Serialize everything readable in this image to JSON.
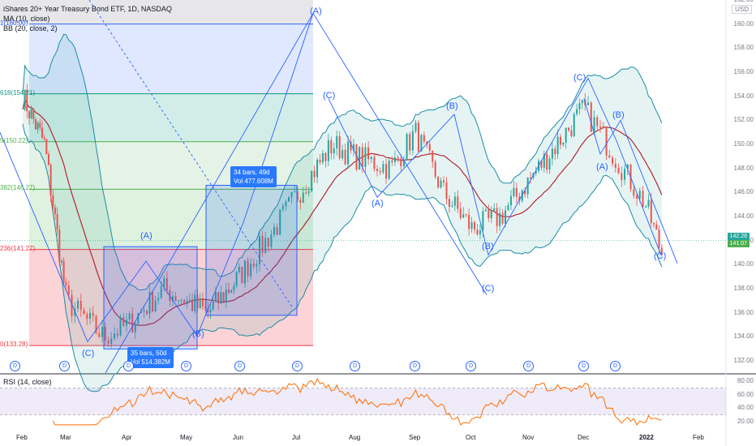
{
  "header": {
    "symbol_line": "iShares 20+ Year Treasury Bond ETF, 1D, NASDAQ",
    "ma_label": "MA (10, close)",
    "bb_label": "BB (20, close, 2)",
    "rsi_label": "RSI (14, close)",
    "currency": "USD"
  },
  "fib_levels": [
    {
      "label": "0(133.28)",
      "price": 133.28,
      "color": "#f23645"
    },
    {
      "label": "236(141.27)",
      "price": 141.27,
      "color": "#f23645"
    },
    {
      "label": "382(146.27)",
      "price": 146.27,
      "color": "#4caf50"
    },
    {
      "label": "5(150.22)",
      "price": 150.22,
      "color": "#4caf50"
    },
    {
      "label": "618(154.21)",
      "price": 154.21,
      "color": "#089981"
    },
    {
      "label": "1(160.00)",
      "price": 160.0,
      "color": "#2962ff"
    }
  ],
  "waves": [
    {
      "label": "(A)",
      "price": 141.5,
      "date": "Apr 10"
    },
    {
      "label": "(B)",
      "price": 133.5,
      "date": "May 5"
    },
    {
      "label": "(C)",
      "price": 132.5,
      "date": "Mar 10"
    },
    {
      "label": "(A)",
      "price": 161.0,
      "date": "Jul 8"
    },
    {
      "label": "(C)",
      "price": 154.0,
      "date": "Jul 15"
    },
    {
      "label": "(A)",
      "price": 145.5,
      "date": "Aug 10"
    },
    {
      "label": "(B)",
      "price": 153.5,
      "date": "Sep 20"
    },
    {
      "label": "(B)",
      "price": 140.5,
      "date": "Oct 10"
    },
    {
      "label": "(C)",
      "price": 137.5,
      "date": "Oct 10"
    },
    {
      "label": "(C)",
      "price": 156.0,
      "date": "Nov 25"
    },
    {
      "label": "(B)",
      "price": 152.5,
      "date": "Dec 18"
    },
    {
      "label": "(A)",
      "price": 148.5,
      "date": "Dec 12"
    },
    {
      "label": "(C)",
      "price": 140.2,
      "date": "Jan 15"
    }
  ],
  "callouts": [
    {
      "line1": "34 bars, 49d",
      "line2": "Vol 477.608M"
    },
    {
      "line1": "35 bars, 50d",
      "line2": "Vol 514.382M"
    }
  ],
  "price_axis": {
    "labels": [
      "162.00",
      "160.00",
      "158.00",
      "156.00",
      "154.00",
      "152.00",
      "150.00",
      "148.00",
      "146.00",
      "144.00",
      "142.00",
      "140.00",
      "138.00",
      "136.00",
      "134.00",
      "132.00"
    ],
    "current_tags": [
      "142.28",
      "141.07"
    ]
  },
  "rsi_axis": {
    "labels": [
      "80.00",
      "60.00",
      "40.00",
      "20.00"
    ]
  },
  "time_axis": [
    "Feb",
    "Mar",
    "Apr",
    "May",
    "Jun",
    "Jul",
    "Aug",
    "Sep",
    "Oct",
    "Nov",
    "Dec",
    "2022",
    "Feb"
  ],
  "dividend_marker": "D",
  "colors": {
    "candle_up": "#26a69a",
    "candle_down": "#ef5350",
    "ma": "#b22833",
    "bb": "#1e8ca5",
    "bb_fill": "rgba(38,166,154,0.12)",
    "wave_lines": "#2962ff",
    "rsi_line": "#ff6d00",
    "rsi_band": "rgba(126,87,194,0.12)"
  },
  "chart_data": {
    "type": "line",
    "title": "iShares 20+ Year Treasury Bond ETF, 1D, NASDAQ",
    "xlabel": "",
    "ylabel": "",
    "ylim": [
      131,
      162
    ],
    "x": [
      "Feb",
      "Mar",
      "Apr",
      "May",
      "Jun",
      "Jul",
      "Aug",
      "Sep",
      "Oct",
      "Nov",
      "Dec",
      "2022"
    ],
    "series": [
      {
        "name": "",
        "values": [
          152,
          138,
          135,
          137,
          139,
          145,
          150,
          149,
          143,
          147,
          153,
          142
        ]
      },
      {
        "name": "MA (10, close)",
        "values": [
          151,
          141,
          135.5,
          137,
          138.5,
          143,
          149,
          148.5,
          144,
          146.5,
          151,
          145
        ]
      }
    ]
  }
}
